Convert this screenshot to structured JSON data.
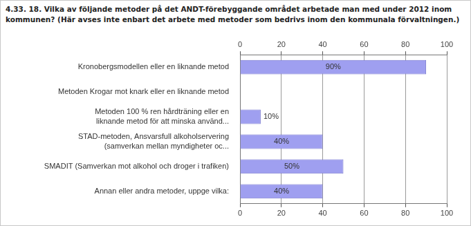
{
  "chart_data": {
    "type": "bar",
    "orientation": "horizontal",
    "title": "4.33. 18. Vilka av följande metoder på det ANDT-förebyggande området arbetade man med under 2012 inom kommunen? (Här avses inte enbart det arbete med metoder som bedrivs inom den kommunala förvaltningen.)",
    "categories": [
      "Kronobergsmodellen eller en liknande metod",
      "Metoden Krogar mot knark eller en liknande metod",
      "Metoden 100 % ren hårdträning eller en liknande metod för att minska använd...",
      "STAD-metoden, Ansvarsfull alkoholservering (samverkan mellan myndigheter oc...",
      "SMADIT (Samverkan mot alkohol och droger i trafiken)",
      "Annan eller andra metoder, uppge vilka:"
    ],
    "values": [
      90,
      0,
      10,
      40,
      50,
      40
    ],
    "value_labels": [
      "90%",
      null,
      "10%",
      "40%",
      "50%",
      "40%"
    ],
    "color": "#9f9ff0",
    "xlim": [
      0,
      100
    ],
    "xticks": [
      0,
      20,
      40,
      60,
      80,
      100
    ],
    "grid": true,
    "data_labels": true
  }
}
